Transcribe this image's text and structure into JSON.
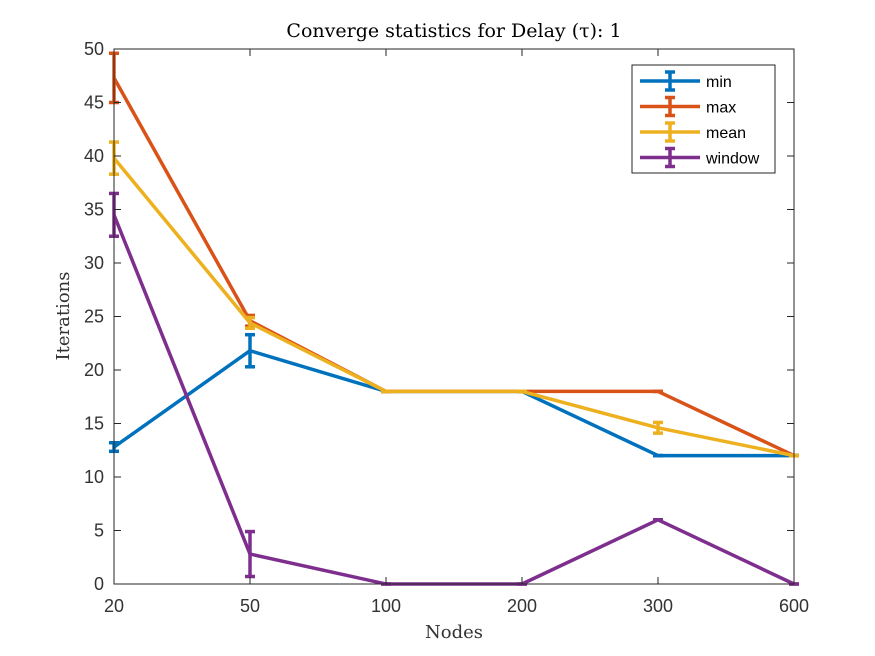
{
  "chart_data": {
    "type": "line",
    "title": "Converge statistics for Delay (τ): 1",
    "xlabel": "Nodes",
    "ylabel": "Iterations",
    "categories": [
      "20",
      "50",
      "100",
      "200",
      "300",
      "600"
    ],
    "ylim": [
      0,
      50
    ],
    "yticks": [
      0,
      5,
      10,
      15,
      20,
      25,
      30,
      35,
      40,
      45,
      50
    ],
    "grid": false,
    "legend_position": "top-right",
    "series": [
      {
        "name": "min",
        "color": "#0072BD",
        "values": [
          12.8,
          21.8,
          18,
          18,
          12,
          12
        ],
        "err": [
          0.4,
          1.5,
          0,
          0,
          0,
          0
        ]
      },
      {
        "name": "max",
        "color": "#D95319",
        "values": [
          47.3,
          24.6,
          18,
          18,
          18,
          12
        ],
        "err": [
          2.3,
          0.5,
          0,
          0,
          0,
          0
        ]
      },
      {
        "name": "mean",
        "color": "#EDB120",
        "values": [
          39.8,
          24.4,
          18,
          18,
          14.6,
          12
        ],
        "err": [
          1.5,
          0.5,
          0,
          0,
          0.5,
          0
        ]
      },
      {
        "name": "window",
        "color": "#7E2F8E",
        "values": [
          34.5,
          2.8,
          0,
          0,
          6,
          0
        ],
        "err": [
          2.0,
          2.1,
          0,
          0,
          0,
          0
        ]
      }
    ]
  }
}
